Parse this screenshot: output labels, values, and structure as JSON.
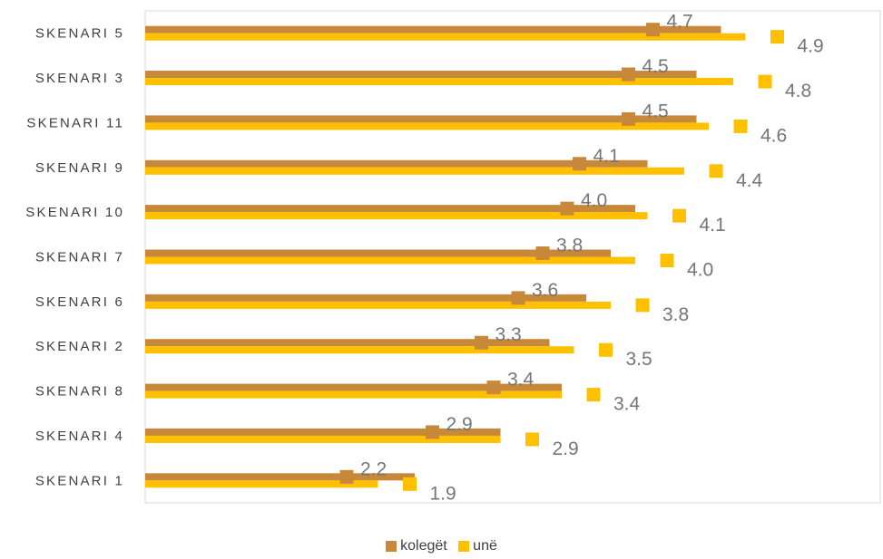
{
  "chart_data": {
    "type": "bar",
    "orientation": "horizontal",
    "categories": [
      "SKENARI 5",
      "SKENARI 3",
      "SKENARI 11",
      "SKENARI 9",
      "SKENARI 10",
      "SKENARI 7",
      "SKENARI 6",
      "SKENARI 2",
      "SKENARI 8",
      "SKENARI 4",
      "SKENARI 1"
    ],
    "series": [
      {
        "name": "kolegët",
        "color": "#C8883A",
        "values": [
          4.7,
          4.5,
          4.5,
          4.1,
          4.0,
          3.8,
          3.6,
          3.3,
          3.4,
          2.9,
          2.2
        ],
        "labels": [
          "4.7",
          "4.5",
          "4.5",
          "4.1",
          "4.0",
          "3.8",
          "3.6",
          "3.3",
          "3.4",
          "2.9",
          "2.2"
        ]
      },
      {
        "name": "unë",
        "color": "#FFC000",
        "values": [
          4.9,
          4.8,
          4.6,
          4.4,
          4.1,
          4.0,
          3.8,
          3.5,
          3.4,
          2.9,
          1.9
        ],
        "labels": [
          "4.9",
          "4.8",
          "4.6",
          "4.4",
          "4.1",
          "4.0",
          "3.8",
          "3.5",
          "3.4",
          "2.9",
          "1.9"
        ]
      }
    ],
    "xlim": [
      0,
      6
    ],
    "grid": false,
    "legend": "bottom",
    "title": "",
    "xlabel": "",
    "ylabel": ""
  }
}
